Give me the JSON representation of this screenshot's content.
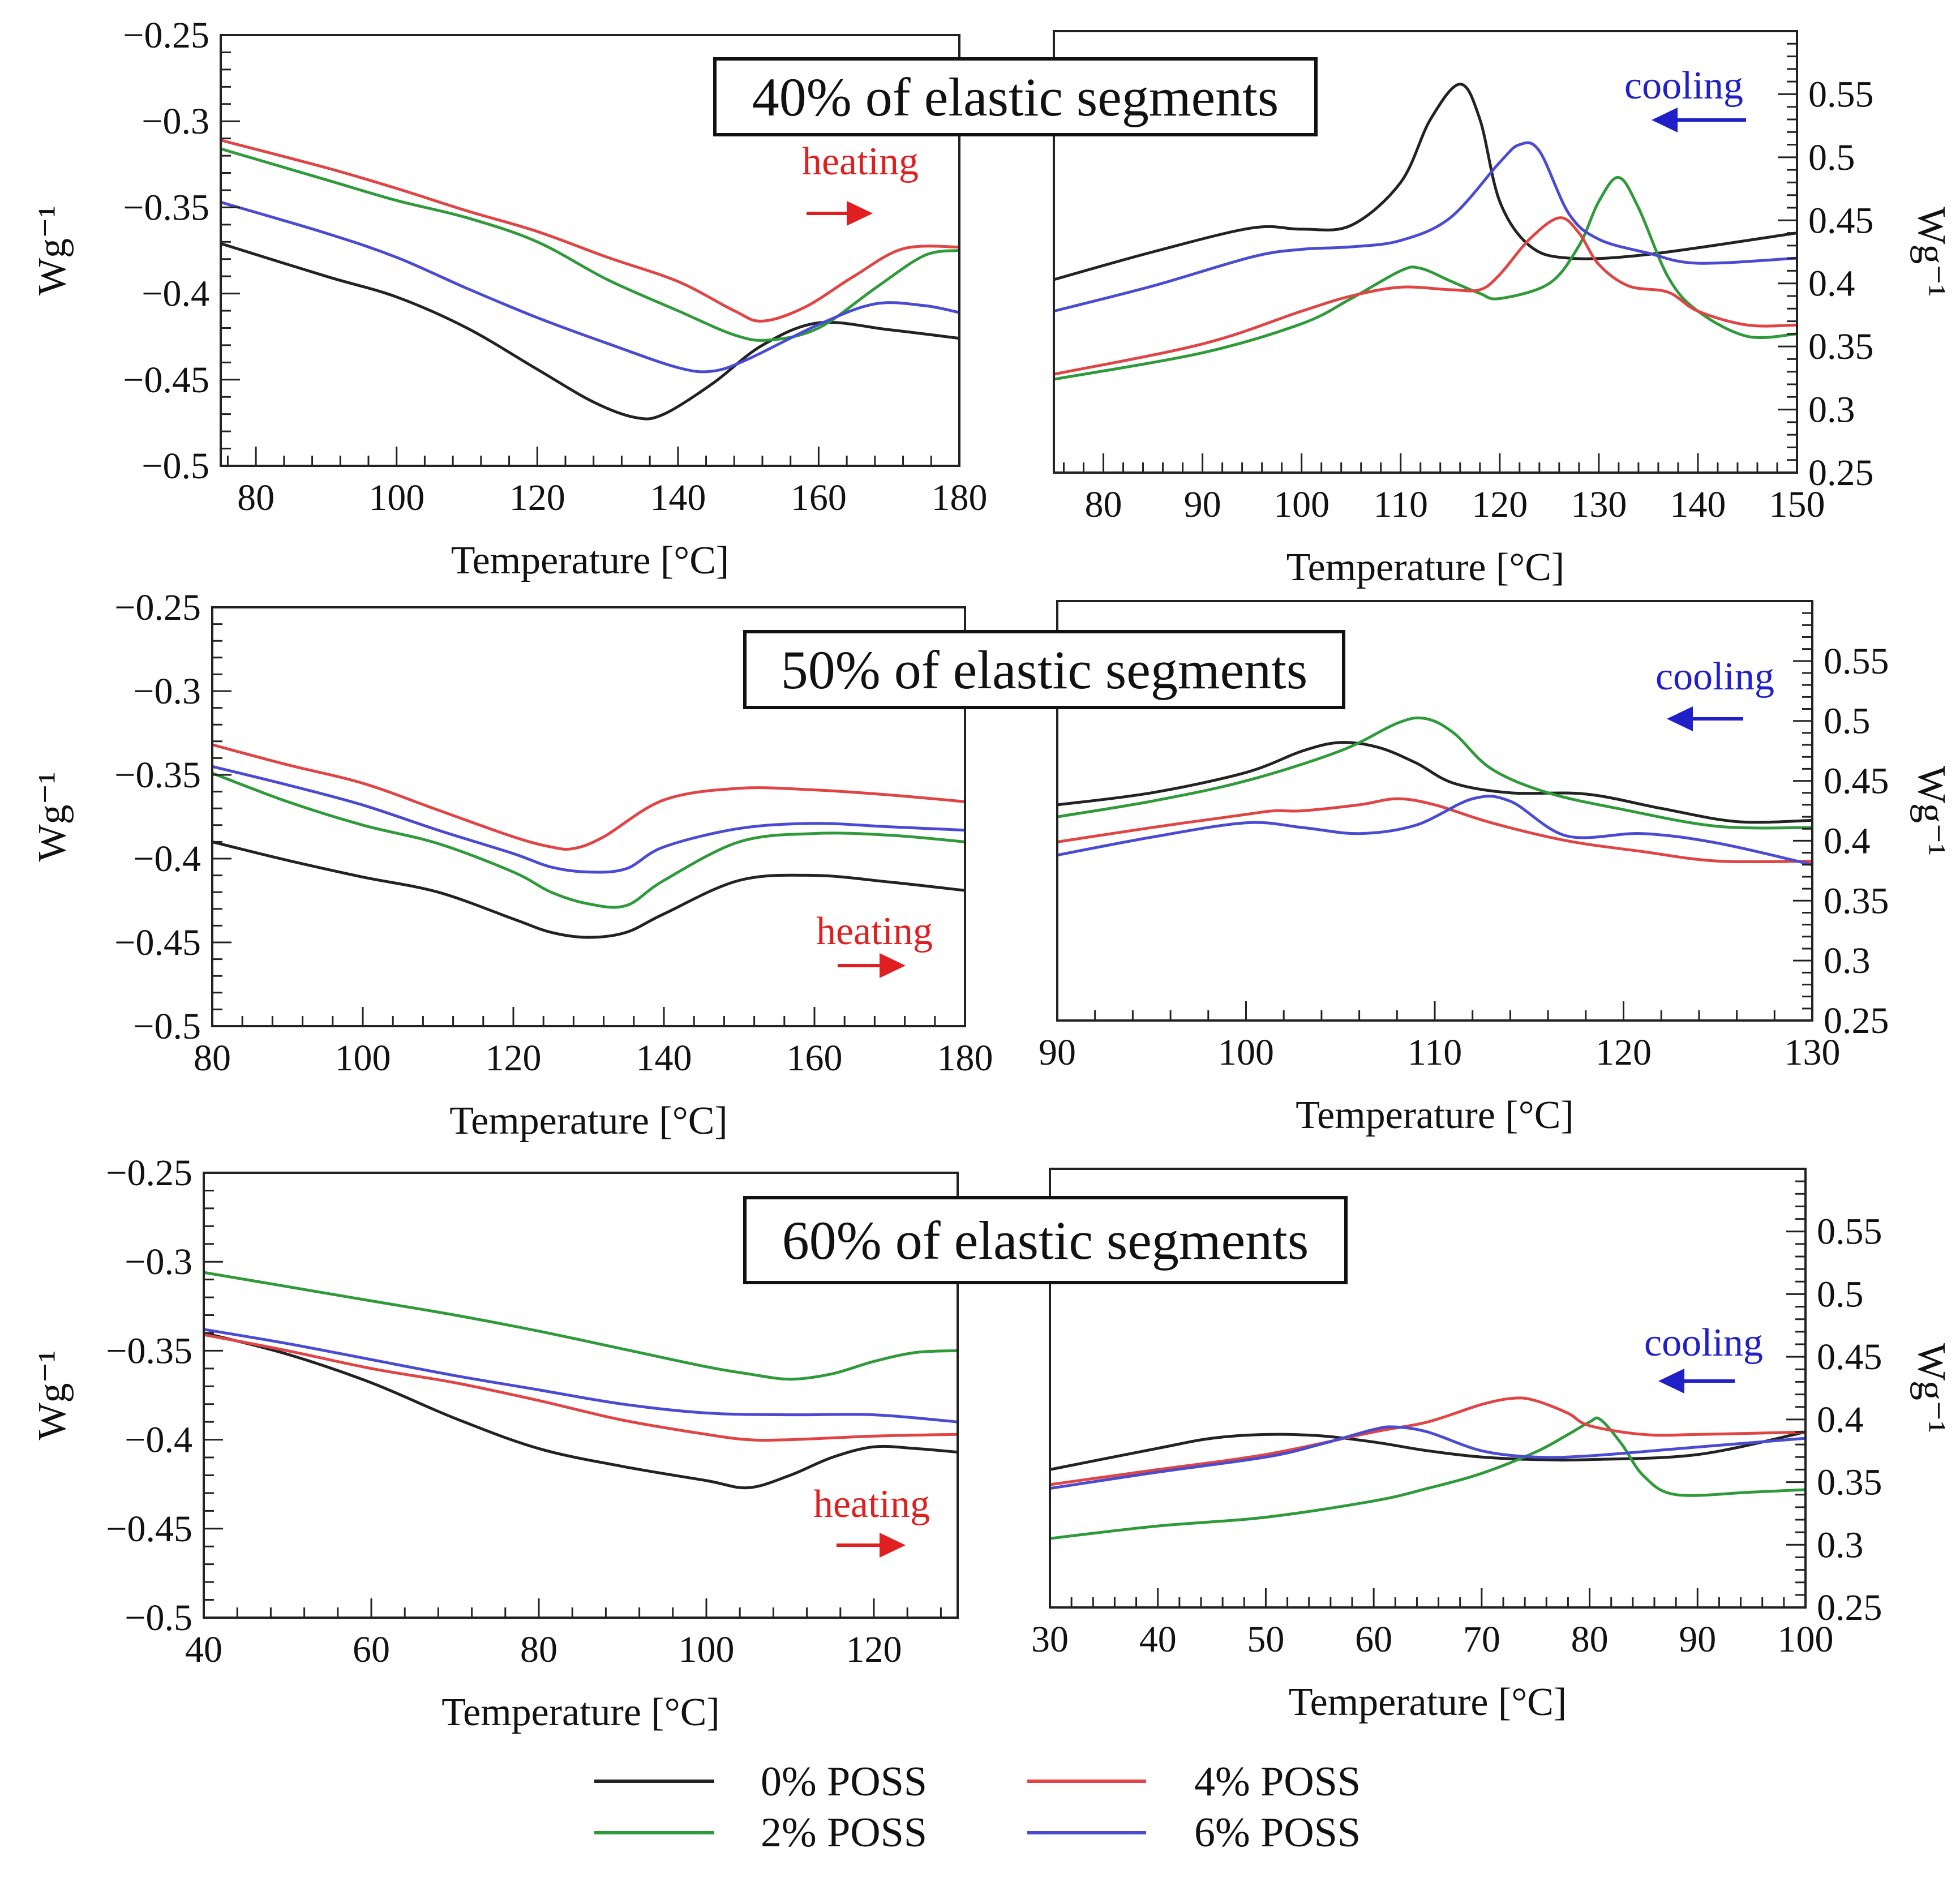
{
  "colors": {
    "0% POSS": "#222222",
    "2% POSS": "#2e9a3a",
    "4% POSS": "#e04444",
    "6% POSS": "#4a4ad2",
    "heating": "#e02020",
    "cooling": "#2020c8"
  },
  "legend": {
    "items": [
      {
        "label": "0% POSS",
        "series": "0% POSS"
      },
      {
        "label": "4% POSS",
        "series": "4% POSS"
      },
      {
        "label": "2% POSS",
        "series": "2% POSS"
      },
      {
        "label": "6% POSS",
        "series": "6% POSS"
      }
    ]
  },
  "rows": [
    {
      "banner": "40% of elastic segments"
    },
    {
      "banner": "50% of elastic segments"
    },
    {
      "banner": "60% of elastic segments"
    }
  ],
  "chart_data": [
    {
      "type": "line",
      "title": "40% of elastic segments",
      "mode": "heating",
      "annotation": "heating",
      "xlabel": "Temperature [°C]",
      "ylabel": "Wg⁻¹",
      "xlim": [
        75,
        180
      ],
      "ylim": [
        -0.5,
        -0.25
      ],
      "xticks": [
        80,
        100,
        120,
        140,
        160,
        180
      ],
      "yticks": [
        -0.25,
        -0.3,
        -0.35,
        -0.4,
        -0.45,
        -0.5
      ],
      "series": [
        {
          "name": "0% POSS",
          "x": [
            75,
            90,
            100,
            110,
            120,
            128,
            134,
            138,
            145,
            152,
            160,
            170,
            180
          ],
          "y": [
            -0.371,
            -0.39,
            -0.402,
            -0.42,
            -0.444,
            -0.463,
            -0.472,
            -0.47,
            -0.452,
            -0.43,
            -0.417,
            -0.421,
            -0.426
          ]
        },
        {
          "name": "2% POSS",
          "x": [
            75,
            90,
            100,
            110,
            120,
            130,
            140,
            148,
            153,
            160,
            168,
            175,
            180
          ],
          "y": [
            -0.316,
            -0.334,
            -0.346,
            -0.356,
            -0.37,
            -0.392,
            -0.41,
            -0.424,
            -0.427,
            -0.42,
            -0.397,
            -0.378,
            -0.375
          ]
        },
        {
          "name": "4% POSS",
          "x": [
            75,
            90,
            100,
            110,
            120,
            130,
            140,
            148,
            152,
            158,
            165,
            172,
            180
          ],
          "y": [
            -0.311,
            -0.327,
            -0.339,
            -0.352,
            -0.364,
            -0.379,
            -0.393,
            -0.41,
            -0.416,
            -0.408,
            -0.39,
            -0.374,
            -0.373
          ]
        },
        {
          "name": "6% POSS",
          "x": [
            75,
            90,
            100,
            110,
            120,
            130,
            140,
            145,
            150,
            160,
            168,
            175,
            180
          ],
          "y": [
            -0.347,
            -0.365,
            -0.379,
            -0.397,
            -0.414,
            -0.429,
            -0.443,
            -0.445,
            -0.438,
            -0.418,
            -0.406,
            -0.407,
            -0.411
          ]
        }
      ]
    },
    {
      "type": "line",
      "title": "40% of elastic segments",
      "mode": "cooling",
      "annotation": "cooling",
      "xlabel": "Temperature [°C]",
      "ylabel": "Wg⁻¹",
      "xlim": [
        75,
        150
      ],
      "ylim": [
        0.25,
        0.6
      ],
      "xticks": [
        80,
        90,
        100,
        110,
        120,
        130,
        140,
        150
      ],
      "yticks": [
        0.25,
        0.3,
        0.35,
        0.4,
        0.45,
        0.5,
        0.55
      ],
      "series": [
        {
          "name": "0% POSS",
          "x": [
            75,
            85,
            95,
            100,
            105,
            110,
            113,
            116,
            118,
            120,
            123,
            127,
            135,
            150
          ],
          "y": [
            0.403,
            0.425,
            0.444,
            0.443,
            0.446,
            0.48,
            0.53,
            0.558,
            0.53,
            0.465,
            0.43,
            0.42,
            0.423,
            0.44
          ]
        },
        {
          "name": "2% POSS",
          "x": [
            75,
            90,
            100,
            105,
            110,
            112,
            115,
            118,
            120,
            125,
            128,
            130,
            132,
            134,
            137,
            140,
            145,
            150
          ],
          "y": [
            0.324,
            0.345,
            0.368,
            0.388,
            0.41,
            0.412,
            0.402,
            0.392,
            0.388,
            0.4,
            0.43,
            0.465,
            0.484,
            0.46,
            0.405,
            0.378,
            0.358,
            0.36
          ]
        },
        {
          "name": "4% POSS",
          "x": [
            75,
            90,
            100,
            105,
            110,
            115,
            118,
            120,
            123,
            126,
            128,
            130,
            133,
            137,
            140,
            145,
            150
          ],
          "y": [
            0.328,
            0.352,
            0.378,
            0.39,
            0.397,
            0.395,
            0.395,
            0.407,
            0.435,
            0.452,
            0.44,
            0.415,
            0.398,
            0.393,
            0.378,
            0.367,
            0.367
          ]
        },
        {
          "name": "6% POSS",
          "x": [
            75,
            85,
            95,
            100,
            105,
            110,
            115,
            120,
            122,
            124,
            127,
            130,
            135,
            140,
            150
          ],
          "y": [
            0.378,
            0.398,
            0.421,
            0.427,
            0.429,
            0.434,
            0.452,
            0.496,
            0.51,
            0.505,
            0.455,
            0.435,
            0.424,
            0.416,
            0.42
          ]
        }
      ]
    },
    {
      "type": "line",
      "title": "50% of elastic segments",
      "mode": "heating",
      "annotation": "heating",
      "xlabel": "Temperature [°C]",
      "ylabel": "Wg⁻¹",
      "xlim": [
        80,
        180
      ],
      "ylim": [
        -0.5,
        -0.25
      ],
      "xticks": [
        80,
        100,
        120,
        140,
        160,
        180
      ],
      "yticks": [
        -0.25,
        -0.3,
        -0.35,
        -0.4,
        -0.45,
        -0.5
      ],
      "series": [
        {
          "name": "0% POSS",
          "x": [
            80,
            90,
            100,
            110,
            120,
            125,
            130,
            135,
            140,
            150,
            160,
            170,
            180
          ],
          "y": [
            -0.39,
            -0.401,
            -0.411,
            -0.42,
            -0.436,
            -0.444,
            -0.447,
            -0.444,
            -0.433,
            -0.413,
            -0.41,
            -0.414,
            -0.419
          ]
        },
        {
          "name": "2% POSS",
          "x": [
            80,
            90,
            100,
            110,
            120,
            125,
            130,
            135,
            140,
            150,
            160,
            170,
            180
          ],
          "y": [
            -0.349,
            -0.366,
            -0.38,
            -0.391,
            -0.408,
            -0.42,
            -0.427,
            -0.428,
            -0.413,
            -0.39,
            -0.385,
            -0.386,
            -0.39
          ]
        },
        {
          "name": "4% POSS",
          "x": [
            80,
            90,
            100,
            110,
            120,
            125,
            128,
            132,
            140,
            150,
            160,
            170,
            180
          ],
          "y": [
            -0.332,
            -0.344,
            -0.355,
            -0.371,
            -0.387,
            -0.393,
            -0.394,
            -0.387,
            -0.365,
            -0.358,
            -0.359,
            -0.362,
            -0.366
          ]
        },
        {
          "name": "6% POSS",
          "x": [
            80,
            90,
            100,
            110,
            120,
            125,
            130,
            135,
            140,
            150,
            160,
            170,
            180
          ],
          "y": [
            -0.345,
            -0.356,
            -0.368,
            -0.383,
            -0.397,
            -0.405,
            -0.408,
            -0.406,
            -0.393,
            -0.382,
            -0.379,
            -0.381,
            -0.383
          ]
        }
      ]
    },
    {
      "type": "line",
      "title": "50% of elastic segments",
      "mode": "cooling",
      "annotation": "cooling",
      "xlabel": "Temperature [°C]",
      "ylabel": "Wg⁻¹",
      "xlim": [
        90,
        130
      ],
      "ylim": [
        0.25,
        0.6
      ],
      "xticks": [
        90,
        100,
        110,
        120,
        130
      ],
      "yticks": [
        0.25,
        0.3,
        0.35,
        0.4,
        0.45,
        0.5,
        0.55
      ],
      "series": [
        {
          "name": "0% POSS",
          "x": [
            90,
            95,
            100,
            103,
            105,
            107,
            109,
            111,
            114,
            118,
            122,
            126,
            130
          ],
          "y": [
            0.43,
            0.44,
            0.457,
            0.475,
            0.482,
            0.478,
            0.465,
            0.448,
            0.44,
            0.439,
            0.427,
            0.416,
            0.417
          ]
        },
        {
          "name": "2% POSS",
          "x": [
            90,
            95,
            100,
            105,
            108,
            109.5,
            111,
            113,
            116,
            120,
            125,
            130
          ],
          "y": [
            0.42,
            0.433,
            0.45,
            0.475,
            0.498,
            0.502,
            0.49,
            0.46,
            0.44,
            0.426,
            0.412,
            0.411
          ]
        },
        {
          "name": "4% POSS",
          "x": [
            90,
            95,
            100,
            101.5,
            103,
            106,
            108,
            110,
            113,
            117,
            121,
            125,
            130
          ],
          "y": [
            0.399,
            0.411,
            0.422,
            0.425,
            0.425,
            0.43,
            0.435,
            0.43,
            0.415,
            0.4,
            0.391,
            0.383,
            0.383
          ]
        },
        {
          "name": "6% POSS",
          "x": [
            90,
            95,
            100,
            103,
            106,
            109,
            112,
            114,
            117,
            121,
            125,
            130
          ],
          "y": [
            0.388,
            0.403,
            0.415,
            0.411,
            0.406,
            0.413,
            0.435,
            0.433,
            0.404,
            0.406,
            0.398,
            0.38
          ]
        }
      ]
    },
    {
      "type": "line",
      "title": "60% of elastic segments",
      "mode": "heating",
      "annotation": "heating",
      "xlabel": "Temperature [°C]",
      "ylabel": "Wg⁻¹",
      "xlim": [
        40,
        130
      ],
      "ylim": [
        -0.5,
        -0.25
      ],
      "xticks": [
        40,
        60,
        80,
        100,
        120
      ],
      "yticks": [
        -0.25,
        -0.3,
        -0.35,
        -0.4,
        -0.45,
        -0.5
      ],
      "series": [
        {
          "name": "0% POSS",
          "x": [
            40,
            50,
            60,
            70,
            80,
            90,
            100,
            105,
            110,
            115,
            120,
            125,
            130
          ],
          "y": [
            -0.34,
            -0.352,
            -0.368,
            -0.388,
            -0.405,
            -0.415,
            -0.423,
            -0.427,
            -0.42,
            -0.41,
            -0.404,
            -0.405,
            -0.407
          ]
        },
        {
          "name": "2% POSS",
          "x": [
            40,
            50,
            60,
            70,
            80,
            90,
            100,
            105,
            110,
            115,
            120,
            125,
            130
          ],
          "y": [
            -0.306,
            -0.314,
            -0.322,
            -0.33,
            -0.339,
            -0.349,
            -0.359,
            -0.363,
            -0.366,
            -0.363,
            -0.356,
            -0.351,
            -0.35
          ]
        },
        {
          "name": "4% POSS",
          "x": [
            40,
            50,
            60,
            70,
            80,
            90,
            100,
            105,
            110,
            120,
            130
          ],
          "y": [
            -0.341,
            -0.35,
            -0.36,
            -0.368,
            -0.378,
            -0.389,
            -0.397,
            -0.4,
            -0.4,
            -0.398,
            -0.397
          ]
        },
        {
          "name": "6% POSS",
          "x": [
            40,
            50,
            60,
            70,
            80,
            90,
            100,
            110,
            120,
            130
          ],
          "y": [
            -0.338,
            -0.346,
            -0.355,
            -0.364,
            -0.372,
            -0.38,
            -0.385,
            -0.386,
            -0.386,
            -0.39
          ]
        }
      ]
    },
    {
      "type": "line",
      "title": "60% of elastic segments",
      "mode": "cooling",
      "annotation": "cooling",
      "xlabel": "Temperature [°C]",
      "ylabel": "Wg⁻¹",
      "xlim": [
        30,
        100
      ],
      "ylim": [
        0.25,
        0.6
      ],
      "xticks": [
        30,
        40,
        50,
        60,
        70,
        80,
        90,
        100
      ],
      "yticks": [
        0.25,
        0.3,
        0.35,
        0.4,
        0.45,
        0.5,
        0.55
      ],
      "series": [
        {
          "name": "0% POSS",
          "x": [
            30,
            40,
            45,
            50,
            55,
            60,
            65,
            70,
            75,
            80,
            90,
            100
          ],
          "y": [
            0.36,
            0.377,
            0.385,
            0.388,
            0.387,
            0.382,
            0.375,
            0.37,
            0.368,
            0.368,
            0.372,
            0.39
          ]
        },
        {
          "name": "2% POSS",
          "x": [
            30,
            40,
            50,
            60,
            65,
            70,
            75,
            78,
            80,
            81,
            83,
            85,
            88,
            95,
            100
          ],
          "y": [
            0.305,
            0.315,
            0.322,
            0.335,
            0.345,
            0.357,
            0.374,
            0.388,
            0.398,
            0.4,
            0.38,
            0.355,
            0.34,
            0.342,
            0.344
          ]
        },
        {
          "name": "4% POSS",
          "x": [
            30,
            40,
            50,
            60,
            65,
            70,
            73,
            75,
            78,
            80,
            85,
            90,
            100
          ],
          "y": [
            0.348,
            0.36,
            0.372,
            0.39,
            0.398,
            0.412,
            0.417,
            0.415,
            0.405,
            0.395,
            0.388,
            0.388,
            0.39
          ]
        },
        {
          "name": "6% POSS",
          "x": [
            30,
            40,
            50,
            55,
            60,
            62,
            65,
            70,
            75,
            80,
            90,
            100
          ],
          "y": [
            0.345,
            0.358,
            0.37,
            0.38,
            0.392,
            0.394,
            0.39,
            0.375,
            0.37,
            0.371,
            0.378,
            0.385
          ]
        }
      ]
    }
  ]
}
